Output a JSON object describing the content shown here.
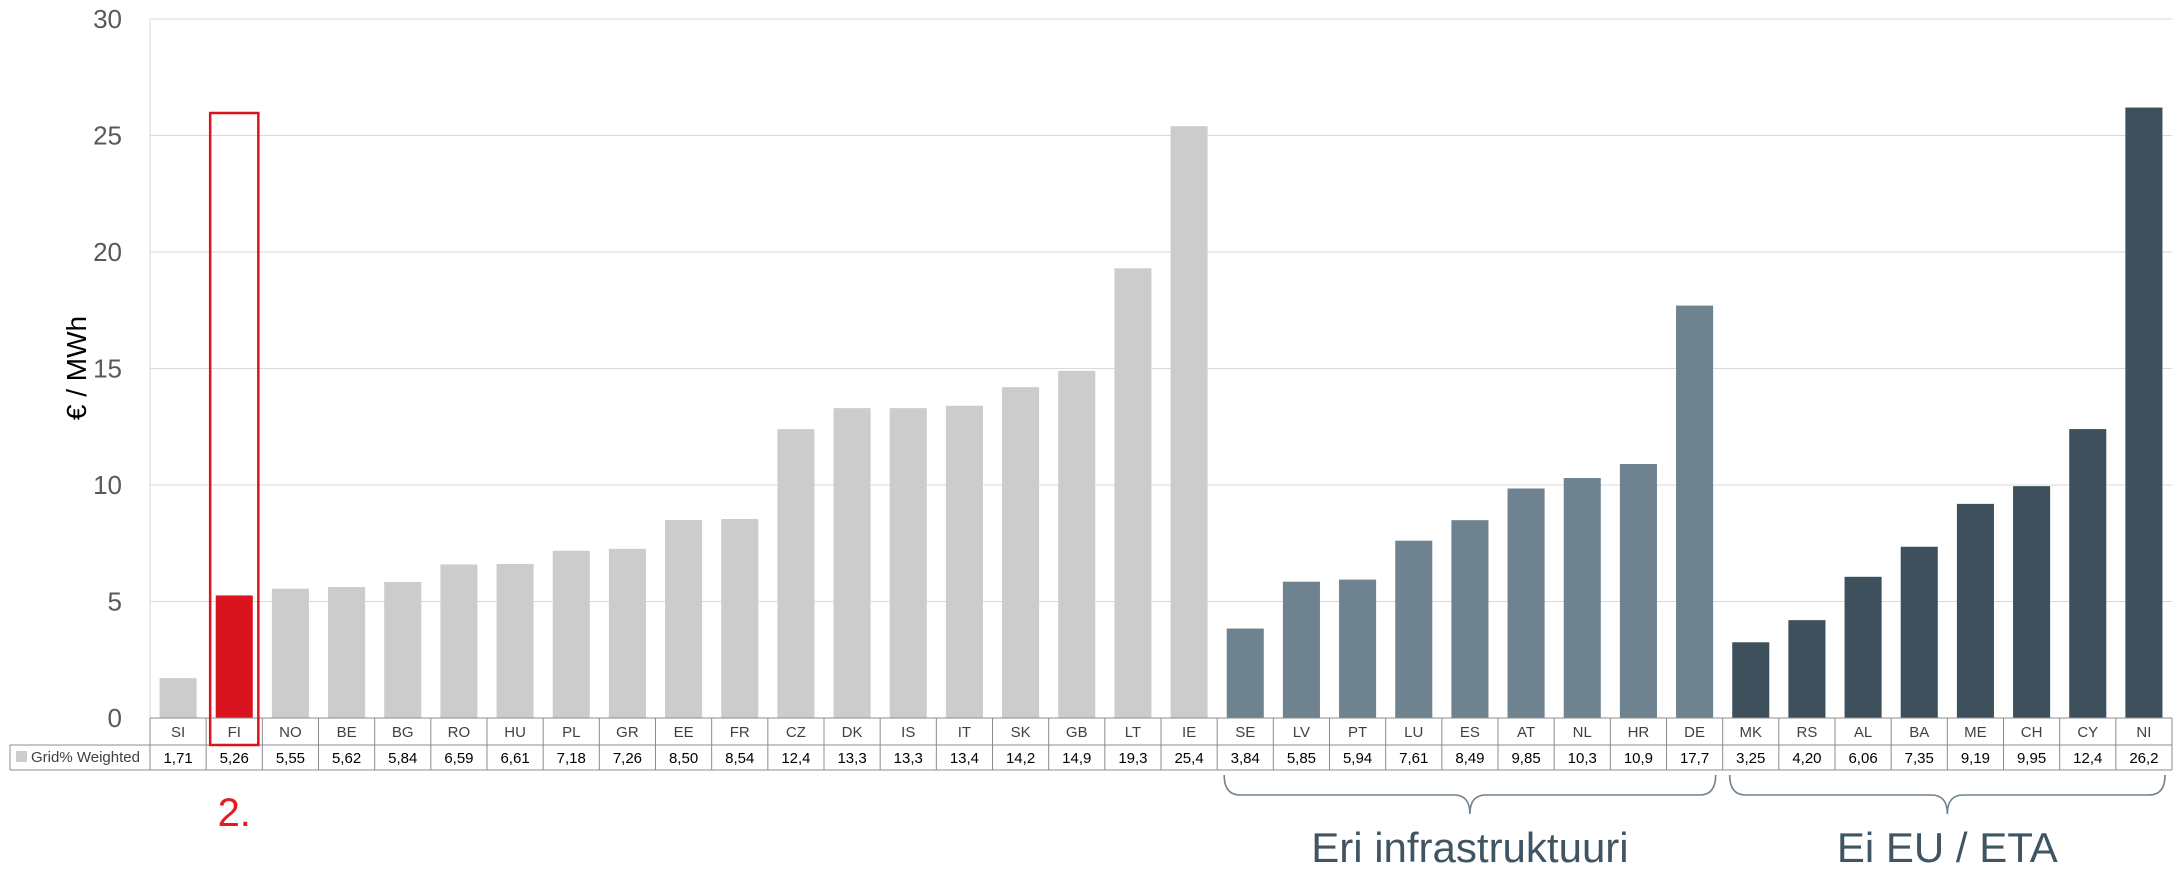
{
  "chart_data": {
    "type": "bar",
    "ylabel": "€ / MWh",
    "ylim": [
      0,
      30
    ],
    "yticks": [
      "0",
      "5",
      "10",
      "15",
      "20",
      "25",
      "30"
    ],
    "legend": "Grid% Weighted",
    "categories": [
      "SI",
      "FI",
      "NO",
      "BE",
      "BG",
      "RO",
      "HU",
      "PL",
      "GR",
      "EE",
      "FR",
      "CZ",
      "DK",
      "IS",
      "IT",
      "SK",
      "GB",
      "LT",
      "IE",
      "SE",
      "LV",
      "PT",
      "LU",
      "ES",
      "AT",
      "NL",
      "HR",
      "DE",
      "MK",
      "RS",
      "AL",
      "BA",
      "ME",
      "CH",
      "CY",
      "NI"
    ],
    "values": [
      1.71,
      5.26,
      5.55,
      5.62,
      5.84,
      6.59,
      6.61,
      7.18,
      7.26,
      8.5,
      8.54,
      12.4,
      13.3,
      13.3,
      13.4,
      14.2,
      14.9,
      19.3,
      25.4,
      3.84,
      5.85,
      5.94,
      7.61,
      8.49,
      9.85,
      10.3,
      10.9,
      17.7,
      3.25,
      4.2,
      6.06,
      7.35,
      9.19,
      9.95,
      12.4,
      26.2
    ],
    "value_labels": [
      "1,71",
      "5,26",
      "5,55",
      "5,62",
      "5,84",
      "6,59",
      "6,61",
      "7,18",
      "7,26",
      "8,50",
      "8,54",
      "12,4",
      "13,3",
      "13,3",
      "13,4",
      "14,2",
      "14,9",
      "19,3",
      "25,4",
      "3,84",
      "5,85",
      "5,94",
      "7,61",
      "8,49",
      "9,85",
      "10,3",
      "10,9",
      "17,7",
      "3,25",
      "4,20",
      "6,06",
      "7,35",
      "9,19",
      "9,95",
      "12,4",
      "26,2"
    ],
    "groups": [
      {
        "label": "",
        "start": 0,
        "end": 18,
        "color": "#cccccc"
      },
      {
        "label": "Eri infrastruktuuri",
        "start": 19,
        "end": 27,
        "color": "#6e828f"
      },
      {
        "label": "Ei EU / ETA",
        "start": 28,
        "end": 35,
        "color": "#3d505c"
      }
    ],
    "highlight": {
      "index": 1,
      "color": "#d9141e",
      "annotation": "2."
    },
    "grid": true
  }
}
